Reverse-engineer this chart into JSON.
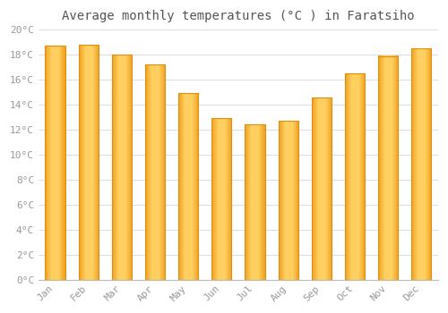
{
  "title": "Average monthly temperatures (°C ) in Faratsiho",
  "months": [
    "Jan",
    "Feb",
    "Mar",
    "Apr",
    "May",
    "Jun",
    "Jul",
    "Aug",
    "Sep",
    "Oct",
    "Nov",
    "Dec"
  ],
  "values": [
    18.7,
    18.8,
    18.0,
    17.2,
    14.9,
    12.9,
    12.4,
    12.7,
    14.6,
    16.5,
    17.9,
    18.5
  ],
  "bar_color_left": "#F5A623",
  "bar_color_center": "#FFD966",
  "bar_color_right": "#F5A623",
  "bar_edge_color": "#E09010",
  "background_color": "#FFFFFF",
  "plot_bg_color": "#FFFFFF",
  "grid_color": "#DDDDDD",
  "ylim": [
    0,
    20
  ],
  "ytick_step": 2,
  "title_fontsize": 10,
  "tick_fontsize": 8,
  "tick_color": "#999999",
  "title_color": "#555555"
}
